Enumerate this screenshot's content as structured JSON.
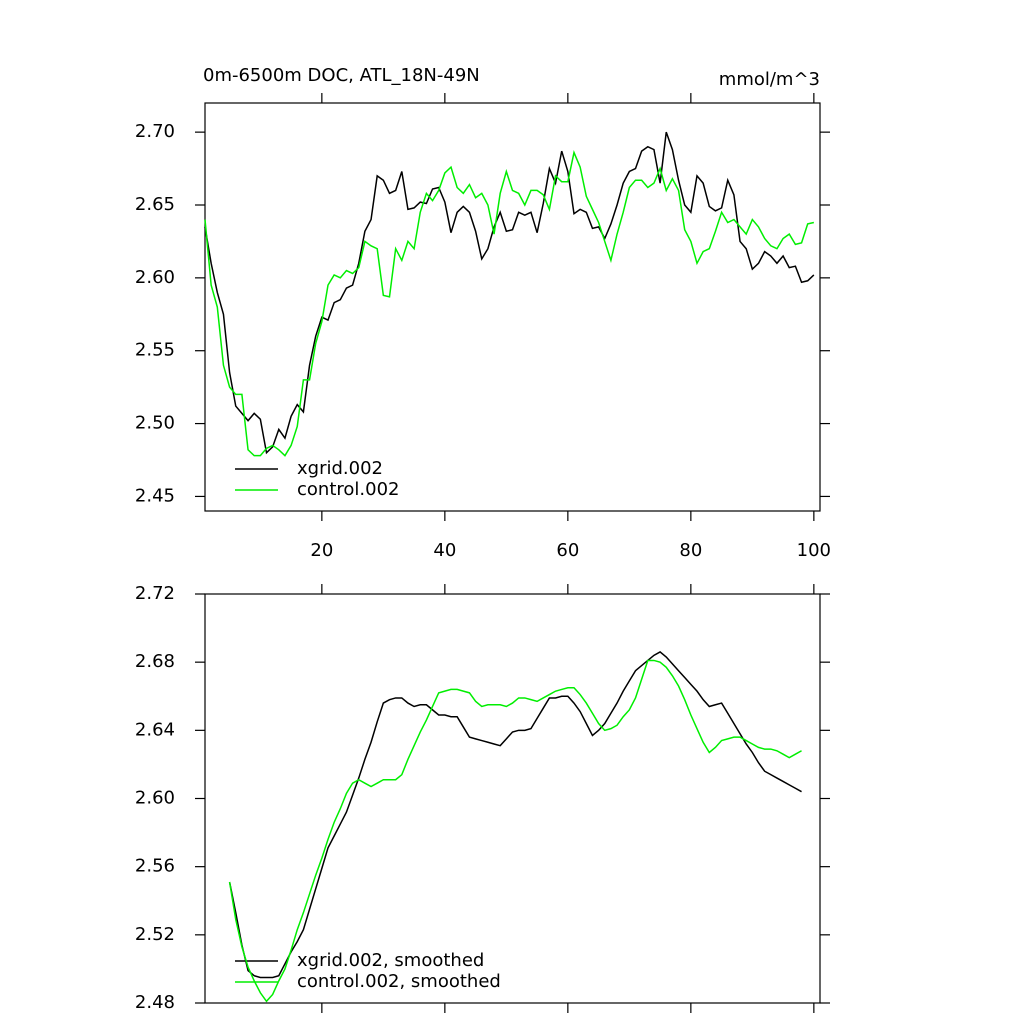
{
  "chart_data": [
    {
      "type": "line",
      "title": "0m-6500m DOC, ATL_18N-49N",
      "units": "mmol/m^3",
      "x": [
        1,
        2,
        3,
        4,
        5,
        6,
        7,
        8,
        9,
        10,
        11,
        12,
        13,
        14,
        15,
        16,
        17,
        18,
        19,
        20,
        21,
        22,
        23,
        24,
        25,
        26,
        27,
        28,
        29,
        30,
        31,
        32,
        33,
        34,
        35,
        36,
        37,
        38,
        39,
        40,
        41,
        42,
        43,
        44,
        45,
        46,
        47,
        48,
        49,
        50,
        51,
        52,
        53,
        54,
        55,
        56,
        57,
        58,
        59,
        60,
        61,
        62,
        63,
        64,
        65,
        66,
        67,
        68,
        69,
        70,
        71,
        72,
        73,
        74,
        75,
        76,
        77,
        78,
        79,
        80,
        81,
        82,
        83,
        84,
        85,
        86,
        87,
        88,
        89,
        90,
        91,
        92,
        93,
        94,
        95,
        96,
        97,
        98,
        99,
        100
      ],
      "series": [
        {
          "name": "xgrid.002",
          "color": "#000000",
          "values": [
            2.635,
            2.61,
            2.59,
            2.575,
            2.535,
            2.512,
            2.507,
            2.502,
            2.507,
            2.503,
            2.48,
            2.484,
            2.496,
            2.49,
            2.505,
            2.513,
            2.508,
            2.54,
            2.56,
            2.573,
            2.571,
            2.583,
            2.585,
            2.593,
            2.595,
            2.61,
            2.632,
            2.64,
            2.67,
            2.667,
            2.658,
            2.66,
            2.673,
            2.647,
            2.648,
            2.652,
            2.651,
            2.661,
            2.662,
            2.652,
            2.631,
            2.645,
            2.649,
            2.645,
            2.632,
            2.613,
            2.62,
            2.635,
            2.645,
            2.632,
            2.633,
            2.645,
            2.643,
            2.645,
            2.631,
            2.651,
            2.675,
            2.665,
            2.687,
            2.673,
            2.644,
            2.647,
            2.645,
            2.634,
            2.635,
            2.627,
            2.637,
            2.65,
            2.665,
            2.673,
            2.675,
            2.687,
            2.69,
            2.688,
            2.665,
            2.7,
            2.688,
            2.667,
            2.65,
            2.645,
            2.67,
            2.665,
            2.649,
            2.646,
            2.648,
            2.667,
            2.657,
            2.625,
            2.62,
            2.606,
            2.61,
            2.618,
            2.615,
            2.61,
            2.615,
            2.607,
            2.608,
            2.597,
            2.598,
            2.602
          ]
        },
        {
          "name": "control.002",
          "color": "#00ee00",
          "values": [
            2.64,
            2.595,
            2.58,
            2.54,
            2.525,
            2.52,
            2.52,
            2.482,
            2.478,
            2.478,
            2.483,
            2.485,
            2.482,
            2.478,
            2.485,
            2.498,
            2.53,
            2.53,
            2.555,
            2.57,
            2.595,
            2.602,
            2.6,
            2.605,
            2.603,
            2.607,
            2.625,
            2.622,
            2.62,
            2.588,
            2.587,
            2.62,
            2.612,
            2.625,
            2.62,
            2.645,
            2.658,
            2.653,
            2.66,
            2.672,
            2.676,
            2.662,
            2.658,
            2.664,
            2.655,
            2.658,
            2.65,
            2.63,
            2.658,
            2.673,
            2.66,
            2.658,
            2.65,
            2.66,
            2.66,
            2.657,
            2.647,
            2.67,
            2.666,
            2.666,
            2.686,
            2.676,
            2.656,
            2.647,
            2.638,
            2.625,
            2.612,
            2.63,
            2.645,
            2.662,
            2.667,
            2.667,
            2.662,
            2.665,
            2.675,
            2.66,
            2.668,
            2.66,
            2.633,
            2.625,
            2.61,
            2.618,
            2.62,
            2.632,
            2.645,
            2.638,
            2.64,
            2.635,
            2.63,
            2.64,
            2.635,
            2.627,
            2.622,
            2.62,
            2.627,
            2.63,
            2.623,
            2.624,
            2.637,
            2.638
          ]
        }
      ],
      "xlim": [
        1,
        101
      ],
      "xticks": [
        20,
        40,
        60,
        80,
        100
      ],
      "ylim": [
        2.44,
        2.72
      ],
      "yticks": [
        {
          "value": 2.45,
          "label": "2.45"
        },
        {
          "value": 2.5,
          "label": "2.50"
        },
        {
          "value": 2.55,
          "label": "2.55"
        },
        {
          "value": 2.6,
          "label": "2.60"
        },
        {
          "value": 2.65,
          "label": "2.65"
        },
        {
          "value": 2.7,
          "label": "2.70"
        }
      ],
      "legend": "lower left"
    },
    {
      "type": "line",
      "x": [
        5,
        6,
        7,
        8,
        9,
        10,
        11,
        12,
        13,
        14,
        15,
        16,
        17,
        18,
        19,
        20,
        21,
        22,
        23,
        24,
        25,
        26,
        27,
        28,
        29,
        30,
        31,
        32,
        33,
        34,
        35,
        36,
        37,
        38,
        39,
        40,
        41,
        42,
        43,
        44,
        45,
        46,
        47,
        48,
        49,
        50,
        51,
        52,
        53,
        54,
        55,
        56,
        57,
        58,
        59,
        60,
        61,
        62,
        63,
        64,
        65,
        66,
        67,
        68,
        69,
        70,
        71,
        72,
        73,
        74,
        75,
        76,
        77,
        78,
        79,
        80,
        81,
        82,
        83,
        84,
        85,
        86,
        87,
        88,
        89,
        90,
        91,
        92,
        93,
        94,
        95,
        96,
        97,
        98
      ],
      "series": [
        {
          "name": "xgrid.002, smoothed",
          "color": "#000000",
          "values": [
            2.551,
            2.533,
            2.514,
            2.499,
            2.496,
            2.495,
            2.495,
            2.495,
            2.496,
            2.503,
            2.51,
            2.516,
            2.523,
            2.535,
            2.547,
            2.559,
            2.571,
            2.578,
            2.585,
            2.592,
            2.602,
            2.612,
            2.623,
            2.633,
            2.645,
            2.656,
            2.658,
            2.659,
            2.659,
            2.656,
            2.654,
            2.655,
            2.655,
            2.652,
            2.649,
            2.649,
            2.648,
            2.648,
            2.642,
            2.636,
            2.635,
            2.634,
            2.633,
            2.632,
            2.631,
            2.635,
            2.639,
            2.64,
            2.64,
            2.641,
            2.647,
            2.653,
            2.659,
            2.659,
            2.66,
            2.66,
            2.656,
            2.651,
            2.644,
            2.637,
            2.64,
            2.644,
            2.65,
            2.656,
            2.663,
            2.669,
            2.675,
            2.678,
            2.681,
            2.684,
            2.686,
            2.683,
            2.679,
            2.675,
            2.671,
            2.667,
            2.663,
            2.658,
            2.654,
            2.655,
            2.656,
            2.65,
            2.644,
            2.638,
            2.632,
            2.627,
            2.621,
            2.616,
            2.614,
            2.612,
            2.61,
            2.608,
            2.606,
            2.604
          ]
        },
        {
          "name": "control.002, smoothed",
          "color": "#00ee00",
          "values": [
            2.551,
            2.529,
            2.513,
            2.501,
            2.493,
            2.486,
            2.481,
            2.485,
            2.493,
            2.5,
            2.511,
            2.523,
            2.533,
            2.544,
            2.555,
            2.565,
            2.576,
            2.586,
            2.594,
            2.603,
            2.609,
            2.611,
            2.609,
            2.607,
            2.609,
            2.611,
            2.611,
            2.611,
            2.614,
            2.623,
            2.631,
            2.639,
            2.646,
            2.654,
            2.662,
            2.663,
            2.664,
            2.664,
            2.663,
            2.662,
            2.657,
            2.654,
            2.655,
            2.655,
            2.655,
            2.654,
            2.656,
            2.659,
            2.659,
            2.658,
            2.657,
            2.659,
            2.661,
            2.663,
            2.664,
            2.665,
            2.665,
            2.661,
            2.656,
            2.65,
            2.644,
            2.64,
            2.641,
            2.643,
            2.648,
            2.652,
            2.659,
            2.67,
            2.681,
            2.681,
            2.68,
            2.677,
            2.672,
            2.666,
            2.658,
            2.649,
            2.641,
            2.633,
            2.627,
            2.63,
            2.634,
            2.635,
            2.636,
            2.636,
            2.634,
            2.632,
            2.63,
            2.629,
            2.629,
            2.628,
            2.626,
            2.624,
            2.626,
            2.628
          ]
        }
      ],
      "xlim": [
        1,
        101
      ],
      "xticks": [
        20,
        40,
        60,
        80,
        100
      ],
      "ylim": [
        2.48,
        2.72
      ],
      "yticks": [
        {
          "value": 2.48,
          "label": "2.48"
        },
        {
          "value": 2.52,
          "label": "2.52"
        },
        {
          "value": 2.56,
          "label": "2.56"
        },
        {
          "value": 2.6,
          "label": "2.60"
        },
        {
          "value": 2.64,
          "label": "2.64"
        },
        {
          "value": 2.68,
          "label": "2.68"
        },
        {
          "value": 2.72,
          "label": "2.72"
        }
      ],
      "legend": "lower left"
    }
  ]
}
